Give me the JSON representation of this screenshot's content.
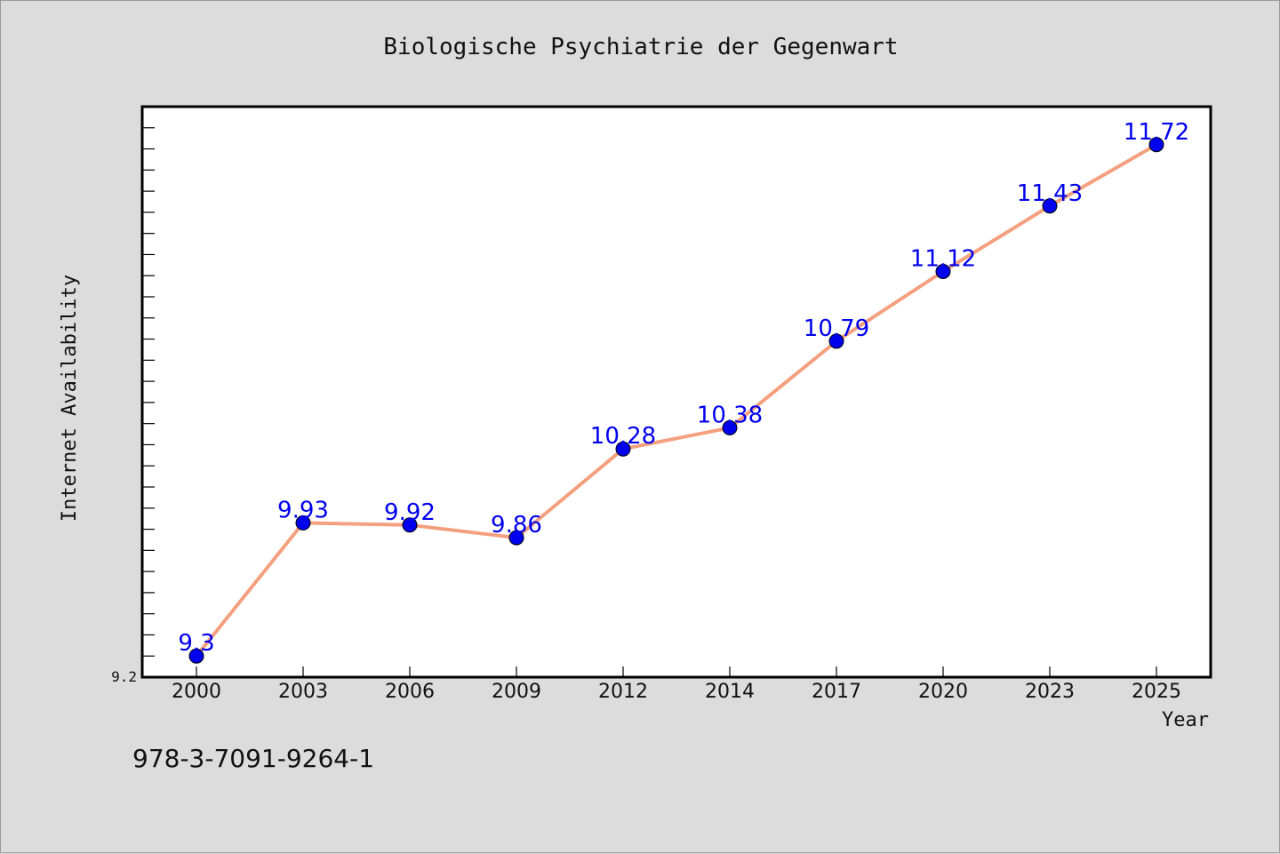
{
  "chart_data": {
    "type": "line",
    "title": "Biologische Psychiatrie der Gegenwart",
    "xlabel": "Year",
    "ylabel": "Internet Availability",
    "x": [
      "2000",
      "2003",
      "2006",
      "2009",
      "2012",
      "2014",
      "2017",
      "2020",
      "2023",
      "2025"
    ],
    "series": [
      {
        "values": [
          9.3,
          9.93,
          9.92,
          9.86,
          10.28,
          10.38,
          10.79,
          11.12,
          11.43,
          11.72
        ],
        "data_labels": [
          "9.3",
          "9.93",
          "9.92",
          "9.86",
          "10.28",
          "10.38",
          "10.79",
          "11.12",
          "11.43",
          "11.72"
        ]
      }
    ],
    "ylim": [
      9.2,
      11.9
    ],
    "ytick_labels": [
      "9.2"
    ],
    "grid": false,
    "colors": {
      "line": "#f4a07f",
      "marker": "#0000ee",
      "data_label": "#0000ee",
      "background": "#dcdcdc",
      "plot_area": "#ffffff"
    }
  },
  "footer": {
    "isbn": "978-3-7091-9264-1"
  }
}
